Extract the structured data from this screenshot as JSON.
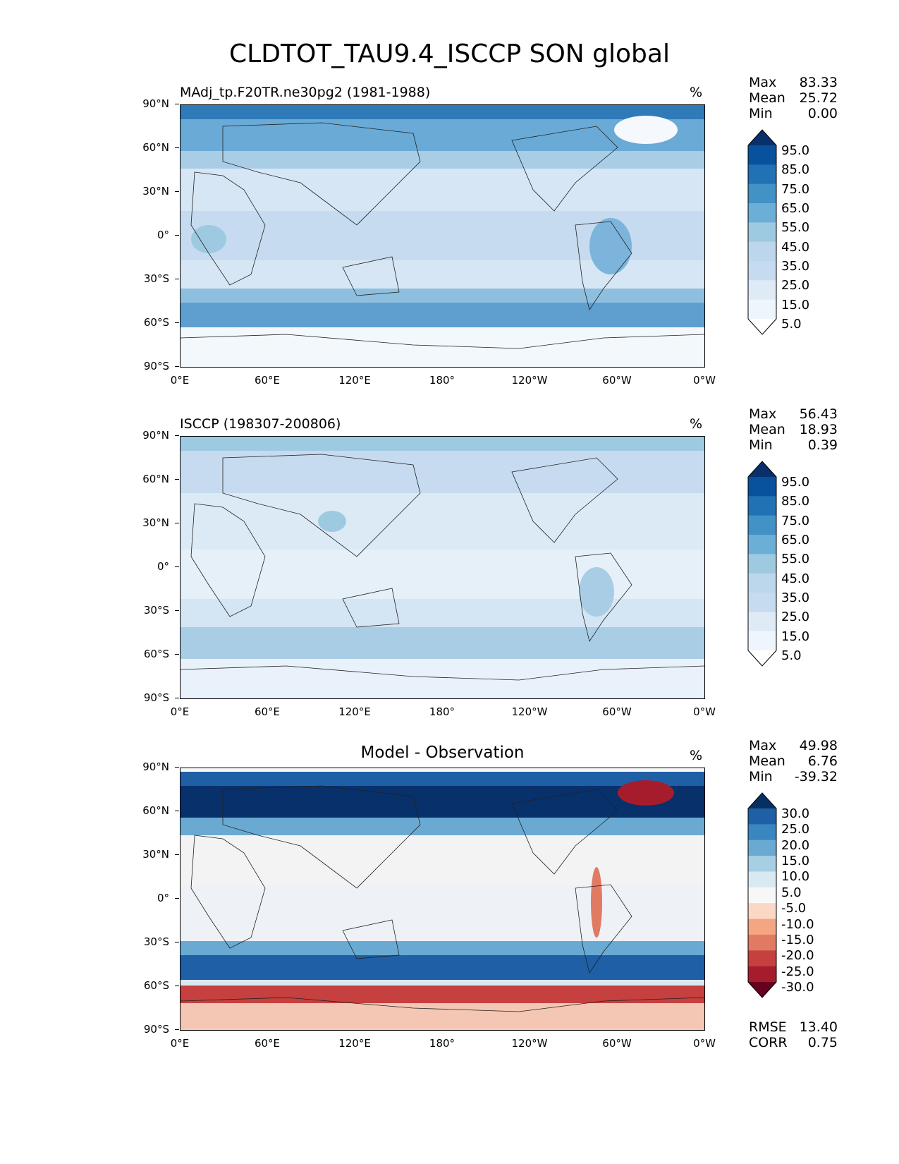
{
  "figure": {
    "title": "CLDTOT_TAU9.4_ISCCP SON global"
  },
  "axes": {
    "lat_ticks": [
      "90°N",
      "60°N",
      "30°N",
      "0°",
      "30°S",
      "60°S",
      "90°S"
    ],
    "lon_ticks": [
      "0°E",
      "60°E",
      "120°E",
      "180°",
      "120°W",
      "60°W",
      "0°W"
    ]
  },
  "panels": [
    {
      "id": "model",
      "title": "MAdj_tp.F20TR.ne30pg2 (1981-1988)",
      "units": "%",
      "stats": {
        "max_label": "Max",
        "max": "83.33",
        "mean_label": "Mean",
        "mean": "25.72",
        "min_label": "Min",
        "min": "0.00"
      },
      "colorbar": {
        "labels": [
          "95.0",
          "85.0",
          "75.0",
          "65.0",
          "55.0",
          "45.0",
          "35.0",
          "25.0",
          "15.0",
          "5.0"
        ],
        "colors": [
          "#08306b",
          "#08519c",
          "#2171b5",
          "#4292c6",
          "#6baed6",
          "#9ecae1",
          "#bcd7eb",
          "#c6dbef",
          "#deebf7",
          "#eef5fc",
          "#ffffff"
        ]
      }
    },
    {
      "id": "obs",
      "title": "ISCCP (198307-200806)",
      "units": "%",
      "stats": {
        "max_label": "Max",
        "max": "56.43",
        "mean_label": "Mean",
        "mean": "18.93",
        "min_label": "Min",
        "min": "0.39"
      },
      "colorbar": {
        "labels": [
          "95.0",
          "85.0",
          "75.0",
          "65.0",
          "55.0",
          "45.0",
          "35.0",
          "25.0",
          "15.0",
          "5.0"
        ],
        "colors": [
          "#08306b",
          "#08519c",
          "#2171b5",
          "#4292c6",
          "#6baed6",
          "#9ecae1",
          "#bcd7eb",
          "#c6dbef",
          "#deebf7",
          "#eef5fc",
          "#ffffff"
        ]
      }
    },
    {
      "id": "diff",
      "title": "Model - Observation",
      "units": "%",
      "stats": {
        "max_label": "Max",
        "max": "49.98",
        "mean_label": "Mean",
        "mean": "6.76",
        "min_label": "Min",
        "min": "-39.32"
      },
      "colorbar": {
        "labels": [
          "30.0",
          "25.0",
          "20.0",
          "15.0",
          "10.0",
          "5.0",
          "-5.0",
          "-10.0",
          "-15.0",
          "-20.0",
          "-25.0",
          "-30.0"
        ],
        "colors": [
          "#053061",
          "#1f5fa6",
          "#3a86c0",
          "#6aaad2",
          "#a7cfe4",
          "#d9e9f2",
          "#f7f7f7",
          "#fbd8c6",
          "#f4a582",
          "#e17a63",
          "#c5403f",
          "#a51d2d",
          "#67001f"
        ]
      },
      "extra": {
        "rmse_label": "RMSE",
        "rmse": "13.40",
        "corr_label": "CORR",
        "corr": "0.75"
      }
    }
  ]
}
